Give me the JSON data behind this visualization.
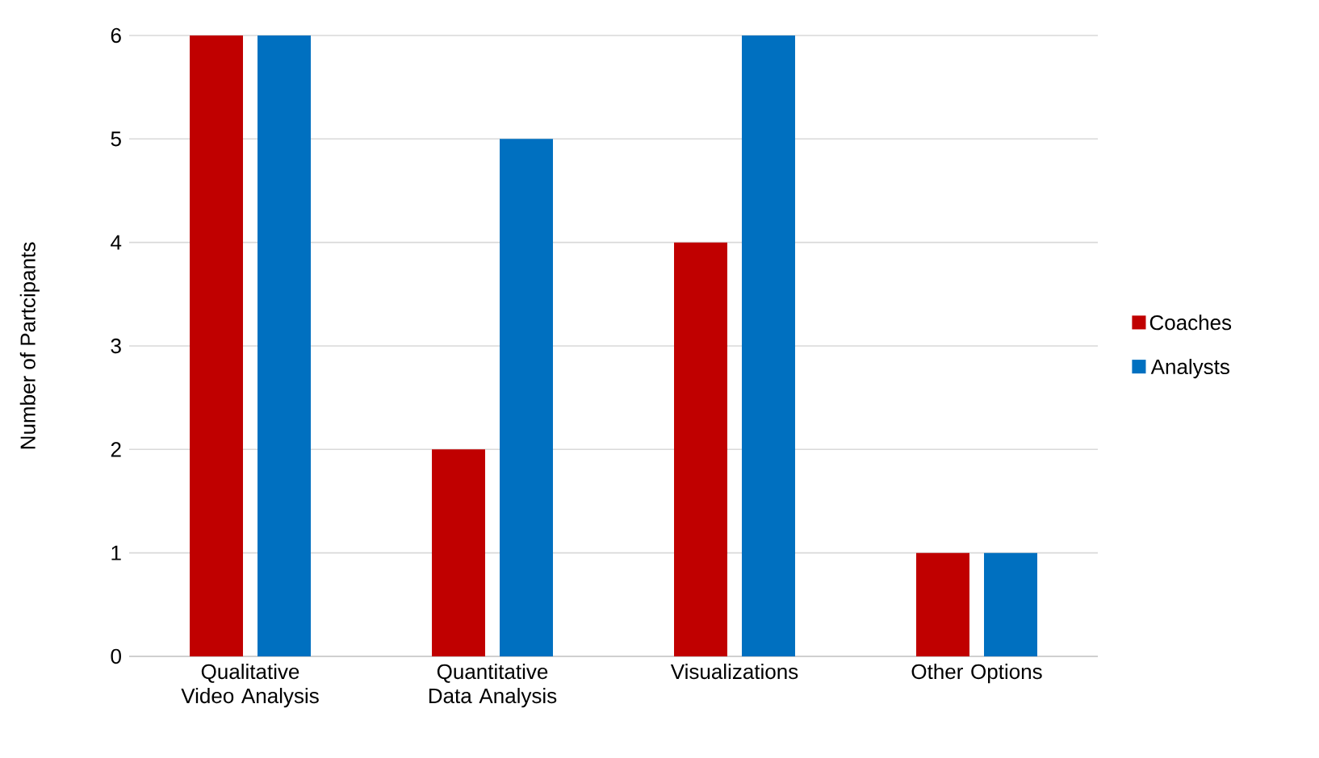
{
  "chart_data": {
    "type": "bar",
    "ylabel": "Number of Partcipants",
    "categories": [
      "Qualitative Video Analysis",
      "Quantitative Data Analysis",
      "Visualizations",
      "Other Options"
    ],
    "series": [
      {
        "name": "Coaches",
        "color": "#c00000",
        "values": [
          6,
          2,
          4,
          1
        ]
      },
      {
        "name": "Analysts",
        "color": "#0070c0",
        "values": [
          6,
          5,
          6,
          1
        ]
      }
    ],
    "ylim": [
      0,
      6
    ],
    "yticks": [
      0,
      1,
      2,
      3,
      4,
      5,
      6
    ],
    "grid": "y",
    "legend": "right"
  }
}
